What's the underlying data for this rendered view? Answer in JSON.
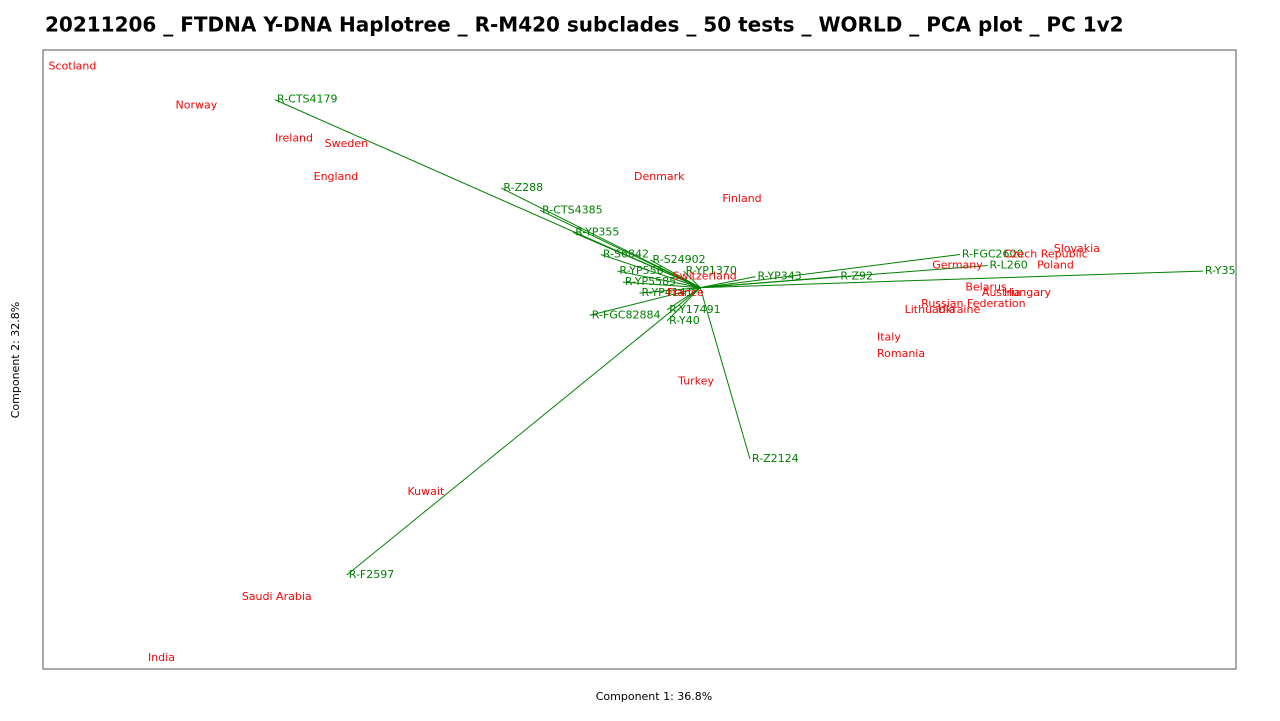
{
  "chart_data": {
    "type": "biplot",
    "title": "20211206 _ FTDNA Y-DNA Haplotree _ R-M420 subclades _ 50 tests _ WORLD _ PCA plot _ PC 1v2",
    "x_label": "Component 1: 36.8%",
    "y_label": "Component 2: 32.8%",
    "xlim": [
      -1.19,
      0.97
    ],
    "ylim": [
      -0.69,
      0.43
    ],
    "scores": {
      "color": "#ff0000",
      "labels": [
        "Scotland",
        "Norway",
        "Ireland",
        "Sweden",
        "England",
        "Denmark",
        "Finland",
        "Switzerland",
        "France",
        "Germany",
        "Czech Republic",
        "Slovakia",
        "Poland",
        "Belarus",
        "Austria",
        "Hungary",
        "Russian Federation",
        "Lithuania",
        "Ukraine",
        "Italy",
        "Romania",
        "Turkey",
        "Kuwait",
        "Saudi Arabia",
        "India"
      ],
      "x": [
        -1.18,
        -0.95,
        -0.77,
        -0.68,
        -0.7,
        -0.12,
        0.04,
        -0.05,
        -0.06,
        0.42,
        0.55,
        0.64,
        0.61,
        0.48,
        0.51,
        0.55,
        0.4,
        0.37,
        0.43,
        0.32,
        0.32,
        -0.04,
        -0.53,
        -0.83,
        -1.0
      ],
      "y": [
        0.4,
        0.33,
        0.27,
        0.26,
        0.2,
        0.2,
        0.16,
        0.02,
        -0.01,
        0.04,
        0.06,
        0.07,
        0.04,
        0.0,
        -0.01,
        -0.01,
        -0.03,
        -0.04,
        -0.04,
        -0.09,
        -0.12,
        -0.17,
        -0.37,
        -0.56,
        -0.67
      ]
    },
    "loadings": {
      "color": "#008000",
      "labels": [
        "R-CTS4179",
        "R-Z288",
        "R-CTS4385",
        "R-YP355",
        "R-S6842",
        "R-S24902",
        "R-YP556",
        "R-YP1370",
        "R-YP343",
        "R-Z92",
        "R-FGC2600",
        "R-L260",
        "R-Y35",
        "R-YP5585",
        "R-YP4141",
        "R-FGC82884",
        "R-Y17491",
        "R-Y40",
        "R-Z2124",
        "R-F2597"
      ],
      "x": [
        -0.77,
        -0.36,
        -0.29,
        -0.23,
        -0.18,
        -0.09,
        -0.15,
        -0.03,
        0.1,
        0.25,
        0.47,
        0.52,
        0.91,
        -0.14,
        -0.11,
        -0.2,
        -0.06,
        -0.06,
        0.09,
        -0.64
      ],
      "y": [
        0.34,
        0.18,
        0.14,
        0.1,
        0.06,
        0.05,
        0.03,
        0.03,
        0.02,
        0.02,
        0.06,
        0.04,
        0.03,
        0.01,
        -0.01,
        -0.05,
        -0.04,
        -0.06,
        -0.31,
        -0.52
      ]
    }
  }
}
